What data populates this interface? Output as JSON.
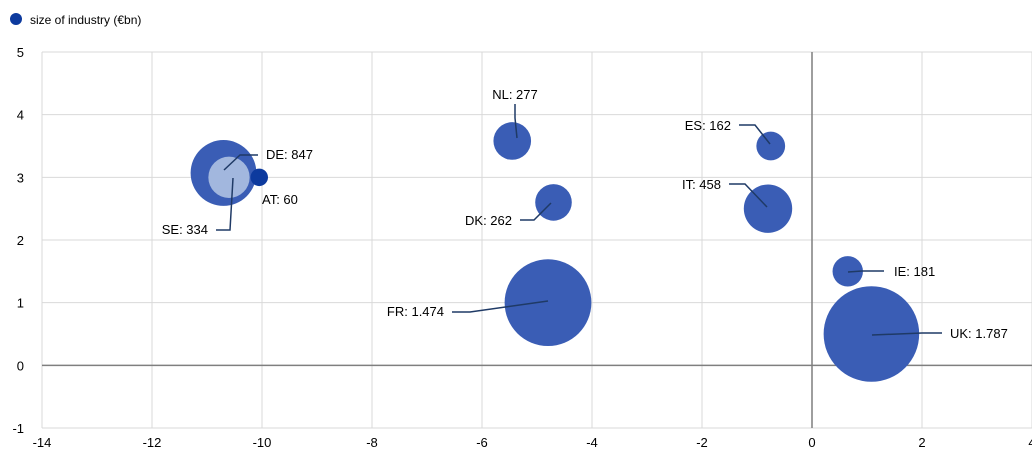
{
  "chart_data": {
    "type": "scatter",
    "legend": {
      "label": "size of industry (€bn)",
      "position": "top-left",
      "marker_color": "#0d3a9e"
    },
    "xlim": [
      -14,
      4
    ],
    "ylim": [
      -1,
      5
    ],
    "x_ticks": [
      -14,
      -12,
      -10,
      -8,
      -6,
      -4,
      -2,
      0,
      2,
      4
    ],
    "y_ticks": [
      -1,
      0,
      1,
      2,
      3,
      4,
      5
    ],
    "grid": true,
    "title": "",
    "xlabel": "",
    "ylabel": "",
    "points": [
      {
        "label": "DE: 847",
        "x": -10.7,
        "y": 3.07,
        "size": 847,
        "color": "#3a5db5"
      },
      {
        "label": "SE: 334",
        "x": -10.6,
        "y": 3.0,
        "size": 334,
        "color": "#a2b7de"
      },
      {
        "label": "AT: 60",
        "x": -10.05,
        "y": 3.0,
        "size": 60,
        "color": "#0d3a9e"
      },
      {
        "label": "NL: 277",
        "x": -5.45,
        "y": 3.58,
        "size": 277,
        "color": "#3a5db5"
      },
      {
        "label": "DK: 262",
        "x": -4.7,
        "y": 2.6,
        "size": 262,
        "color": "#3a5db5"
      },
      {
        "label": "FR: 1.474",
        "x": -4.8,
        "y": 1.0,
        "size": 1474,
        "color": "#3a5db5"
      },
      {
        "label": "ES: 162",
        "x": -0.75,
        "y": 3.5,
        "size": 162,
        "color": "#3a5db5"
      },
      {
        "label": "IT: 458",
        "x": -0.8,
        "y": 2.5,
        "size": 458,
        "color": "#3a5db5"
      },
      {
        "label": "IE: 181",
        "x": 0.65,
        "y": 1.5,
        "size": 181,
        "color": "#3a5db5"
      },
      {
        "label": "UK: 1.787",
        "x": 1.08,
        "y": 0.5,
        "size": 1787,
        "color": "#3a5db5"
      }
    ]
  }
}
